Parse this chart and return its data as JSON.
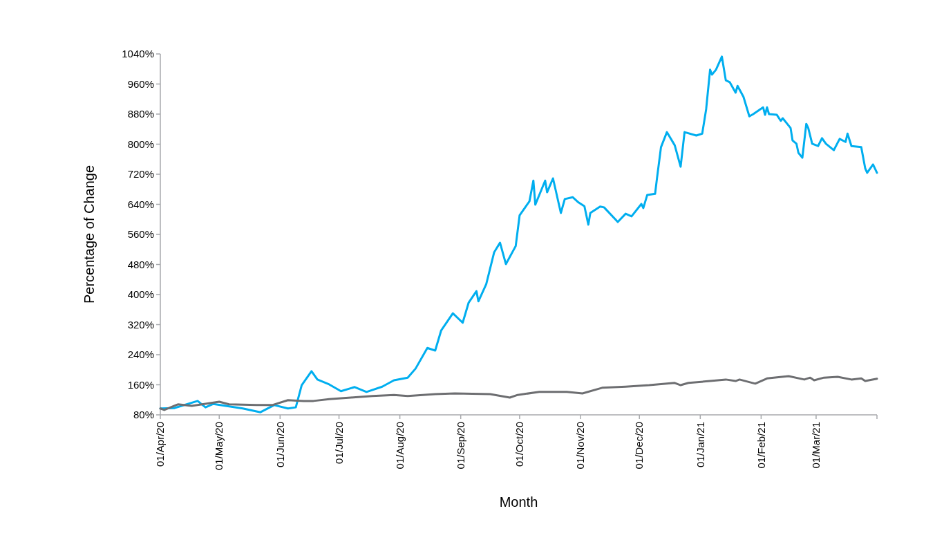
{
  "chart_data": {
    "type": "line",
    "xlabel": "Month",
    "ylabel": "Percentage of Change",
    "xlim": [
      "2020-04-01",
      "2021-04-01"
    ],
    "xticks": [
      {
        "value": "2020-04-01",
        "label": "01/Apr/20"
      },
      {
        "value": "2020-05-01",
        "label": "01/May/20"
      },
      {
        "value": "2020-06-01",
        "label": "01/Jun/20"
      },
      {
        "value": "2020-07-01",
        "label": "01/Jul/20"
      },
      {
        "value": "2020-08-01",
        "label": "01/Aug/20"
      },
      {
        "value": "2020-09-01",
        "label": "01/Sep/20"
      },
      {
        "value": "2020-10-01",
        "label": "01/Oct/20"
      },
      {
        "value": "2020-11-01",
        "label": "01/Nov/20"
      },
      {
        "value": "2020-12-01",
        "label": "01/Dec/20"
      },
      {
        "value": "2021-01-01",
        "label": "01/Jan/21"
      },
      {
        "value": "2021-02-01",
        "label": "01/Feb/21"
      },
      {
        "value": "2021-03-01",
        "label": "01/Mar/21"
      },
      {
        "value": "2021-04-01",
        "label": null
      }
    ],
    "ylim": [
      80,
      1040
    ],
    "yticks": [
      {
        "value": 80,
        "label": "80%"
      },
      {
        "value": 160,
        "label": "160%"
      },
      {
        "value": 240,
        "label": "240%"
      },
      {
        "value": 320,
        "label": "320%"
      },
      {
        "value": 400,
        "label": "400%"
      },
      {
        "value": 480,
        "label": "480%"
      },
      {
        "value": 560,
        "label": "560%"
      },
      {
        "value": 640,
        "label": "640%"
      },
      {
        "value": 720,
        "label": "720%"
      },
      {
        "value": 800,
        "label": "800%"
      },
      {
        "value": 880,
        "label": "880%"
      },
      {
        "value": 960,
        "label": "960%"
      },
      {
        "value": 1040,
        "label": "1040%"
      }
    ],
    "grid": false,
    "series": [
      {
        "color": "#00aeef",
        "x": [
          "2020-04-01",
          "2020-04-08",
          "2020-04-20",
          "2020-04-24",
          "2020-04-28",
          "2020-05-13",
          "2020-05-22",
          "2020-05-29",
          "2020-06-05",
          "2020-06-09",
          "2020-06-12",
          "2020-06-17",
          "2020-06-20",
          "2020-06-26",
          "2020-07-02",
          "2020-07-09",
          "2020-07-15",
          "2020-07-23",
          "2020-07-29",
          "2020-08-05",
          "2020-08-09",
          "2020-08-15",
          "2020-08-19",
          "2020-08-22",
          "2020-08-28",
          "2020-09-02",
          "2020-09-05",
          "2020-09-09",
          "2020-09-10",
          "2020-09-14",
          "2020-09-18",
          "2020-09-21",
          "2020-09-24",
          "2020-09-29",
          "2020-10-01",
          "2020-10-06",
          "2020-10-08",
          "2020-10-09",
          "2020-10-14",
          "2020-10-15",
          "2020-10-18",
          "2020-10-22",
          "2020-10-24",
          "2020-10-28",
          "2020-10-31",
          "2020-11-03",
          "2020-11-05",
          "2020-11-06",
          "2020-11-11",
          "2020-11-13",
          "2020-11-20",
          "2020-11-24",
          "2020-11-27",
          "2020-12-02",
          "2020-12-03",
          "2020-12-05",
          "2020-12-09",
          "2020-12-10",
          "2020-12-12",
          "2020-12-15",
          "2020-12-19",
          "2020-12-22",
          "2020-12-24",
          "2020-12-30",
          "2021-01-02",
          "2021-01-04",
          "2021-01-06",
          "2021-01-07",
          "2021-01-09",
          "2021-01-12",
          "2021-01-14",
          "2021-01-16",
          "2021-01-19",
          "2021-01-20",
          "2021-01-23",
          "2021-01-26",
          "2021-01-28",
          "2021-02-02",
          "2021-02-03",
          "2021-02-04",
          "2021-02-05",
          "2021-02-09",
          "2021-02-11",
          "2021-02-12",
          "2021-02-16",
          "2021-02-17",
          "2021-02-19",
          "2021-02-20",
          "2021-02-22",
          "2021-02-24",
          "2021-02-25",
          "2021-02-27",
          "2021-03-02",
          "2021-03-04",
          "2021-03-06",
          "2021-03-10",
          "2021-03-13",
          "2021-03-16",
          "2021-03-17",
          "2021-03-19",
          "2021-03-24",
          "2021-03-26",
          "2021-03-27",
          "2021-03-30",
          "2021-04-01"
        ],
        "values": [
          97,
          98,
          117,
          100,
          109,
          97,
          87,
          106,
          97,
          100,
          159,
          196,
          174,
          161,
          143,
          154,
          141,
          155,
          172,
          179,
          203,
          258,
          251,
          304,
          350,
          325,
          378,
          409,
          382,
          428,
          512,
          538,
          481,
          529,
          611,
          648,
          703,
          639,
          703,
          672,
          709,
          617,
          654,
          659,
          645,
          635,
          586,
          617,
          634,
          632,
          593,
          615,
          608,
          641,
          630,
          665,
          668,
          711,
          792,
          832,
          797,
          740,
          832,
          823,
          828,
          893,
          998,
          985,
          998,
          1033,
          970,
          965,
          937,
          955,
          926,
          874,
          880,
          898,
          878,
          898,
          880,
          878,
          862,
          869,
          843,
          810,
          801,
          777,
          764,
          854,
          843,
          801,
          795,
          816,
          801,
          784,
          814,
          806,
          828,
          795,
          792,
          736,
          724,
          746,
          724
        ]
      },
      {
        "color": "#6d6e71",
        "x": [
          "2020-04-01",
          "2020-04-03",
          "2020-04-10",
          "2020-04-17",
          "2020-05-01",
          "2020-05-06",
          "2020-05-20",
          "2020-05-28",
          "2020-06-05",
          "2020-06-13",
          "2020-06-18",
          "2020-06-26",
          "2020-07-07",
          "2020-07-18",
          "2020-07-29",
          "2020-08-05",
          "2020-08-19",
          "2020-08-29",
          "2020-09-16",
          "2020-09-26",
          "2020-09-30",
          "2020-10-11",
          "2020-10-21",
          "2020-10-25",
          "2020-11-02",
          "2020-11-12",
          "2020-11-24",
          "2020-12-06",
          "2020-12-19",
          "2020-12-22",
          "2020-12-26",
          "2021-01-06",
          "2021-01-14",
          "2021-01-19",
          "2021-01-21",
          "2021-01-29",
          "2021-02-04",
          "2021-02-15",
          "2021-02-23",
          "2021-02-26",
          "2021-02-28",
          "2021-03-05",
          "2021-03-12",
          "2021-03-19",
          "2021-03-24",
          "2021-03-26",
          "2021-04-01"
        ],
        "values": [
          97,
          93,
          108,
          104,
          115,
          108,
          106,
          106,
          119,
          117,
          117,
          122,
          126,
          130,
          133,
          130,
          135,
          137,
          135,
          126,
          133,
          141,
          141,
          141,
          137,
          152,
          155,
          159,
          165,
          159,
          165,
          170,
          174,
          170,
          174,
          163,
          177,
          183,
          174,
          179,
          172,
          179,
          181,
          174,
          177,
          170,
          176
        ]
      }
    ]
  }
}
